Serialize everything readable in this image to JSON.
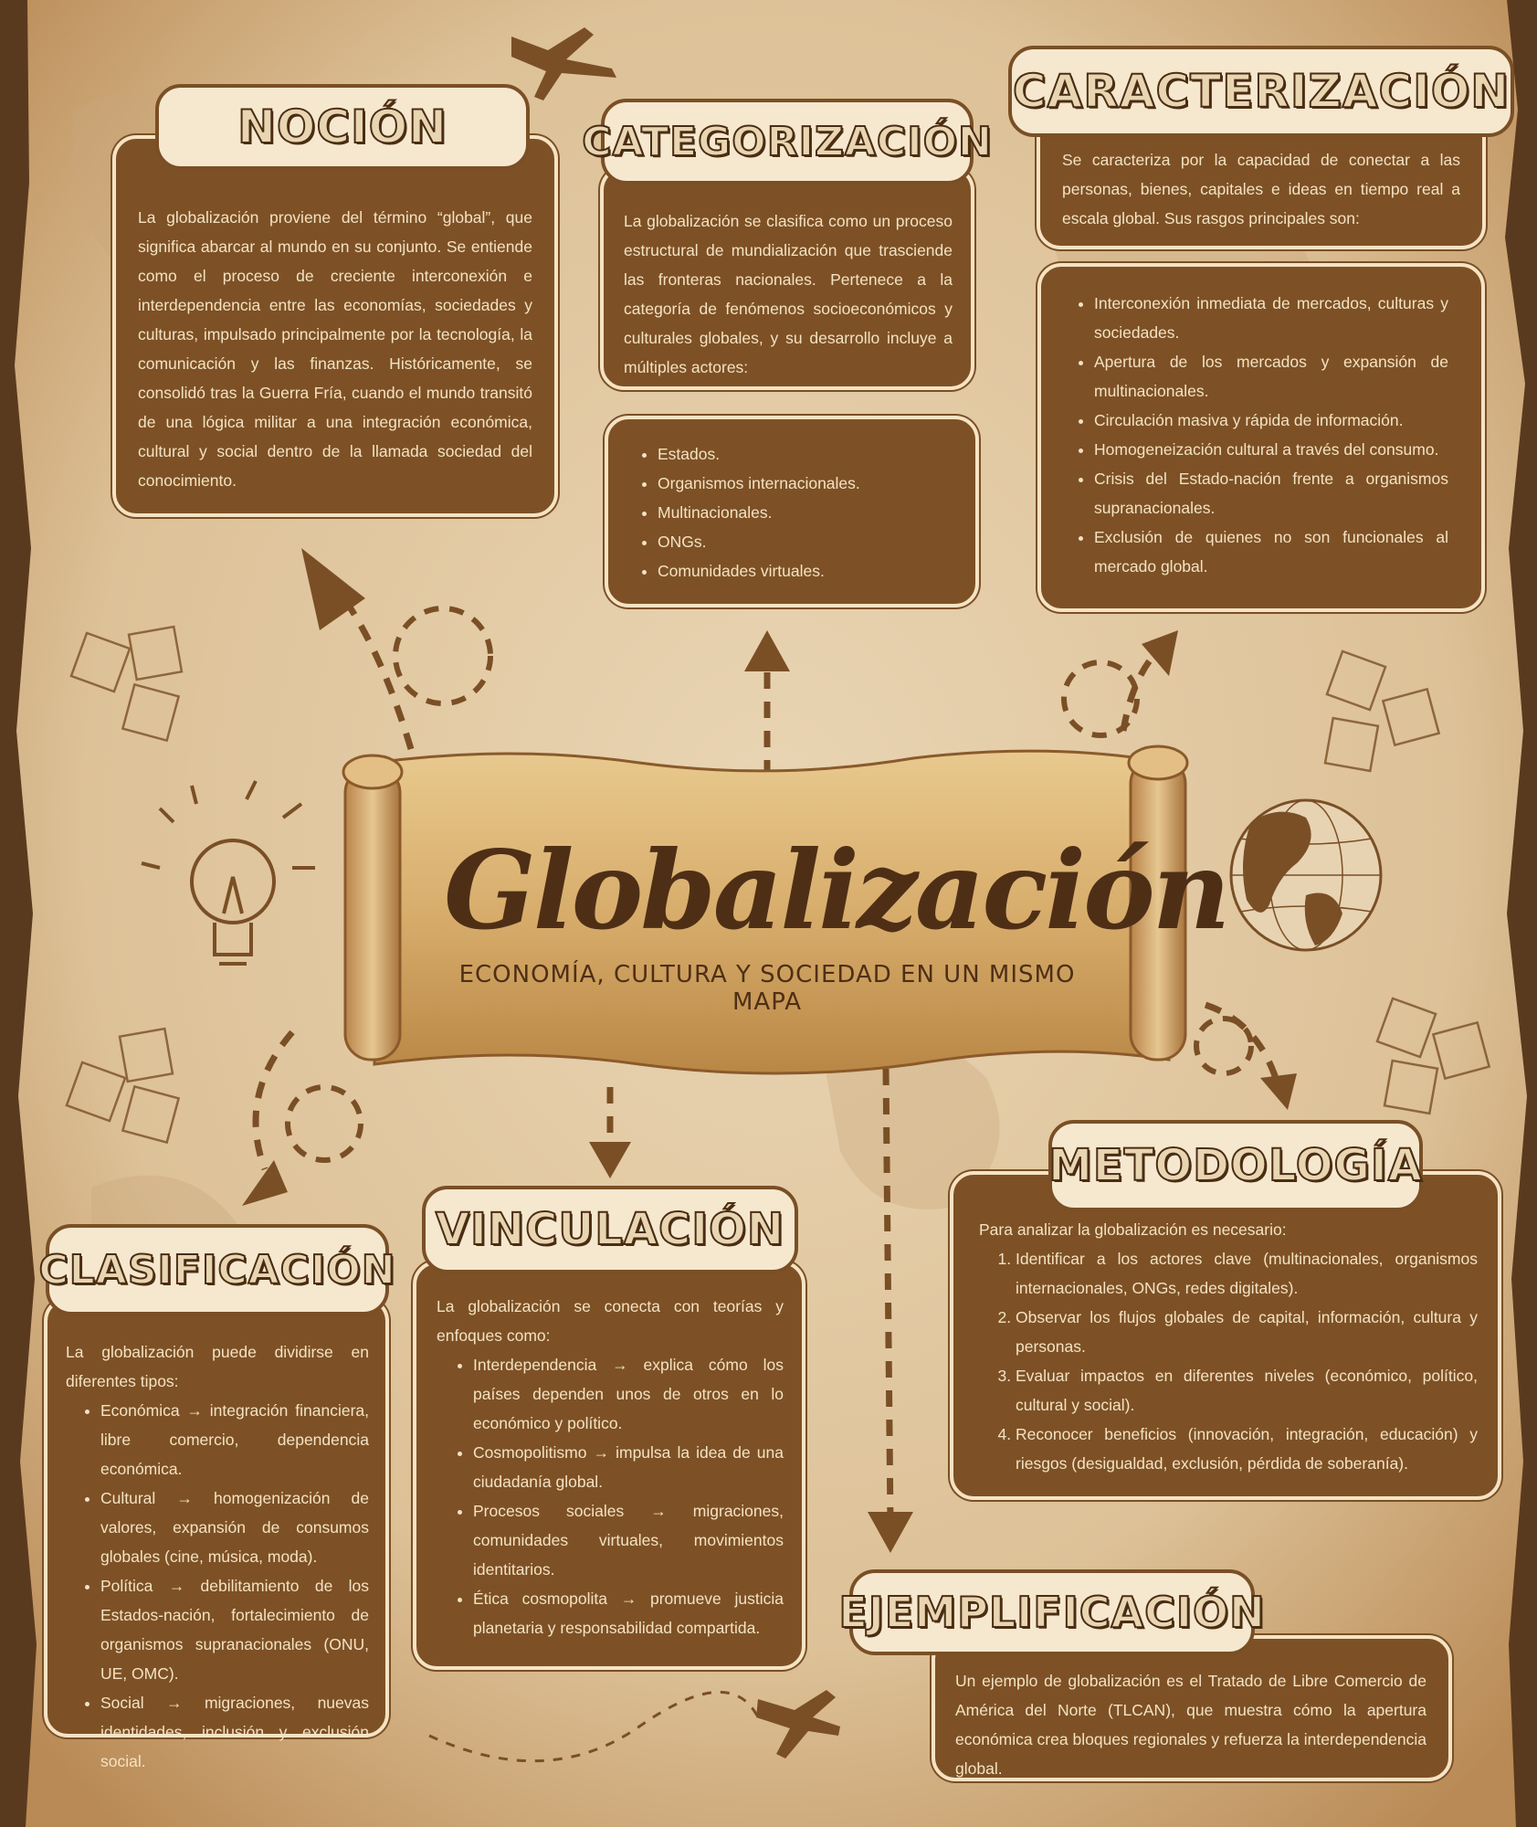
{
  "colors": {
    "card_bg": "#7d5125",
    "card_text": "#f3e2c4",
    "tag_bg": "#f6e8cf",
    "title": "#4e2f16"
  },
  "center": {
    "title": "Globalización",
    "subtitle": "ECONOMÍA, CULTURA Y SOCIEDAD EN UN MISMO MAPA"
  },
  "nocion": {
    "title": "NOCIÓN",
    "text": "La globalización proviene del término “global”, que significa abarcar al mundo en su conjunto. Se entiende como el proceso de creciente interconexión e interdependencia entre las economías, sociedades y culturas, impulsado principalmente por la tecnología, la comunicación y las finanzas. Históricamente, se consolidó tras la Guerra Fría, cuando el mundo transitó de una lógica militar a una integración económica, cultural y social dentro de la llamada sociedad del conocimiento."
  },
  "categorizacion": {
    "title": "CATEGORIZACIÓN",
    "text": "La globalización se clasifica como un proceso estructural de mundialización que trasciende las fronteras nacionales. Pertenece a la categoría de fenómenos socioeconómicos y culturales globales, y su desarrollo incluye a múltiples actores:",
    "items": [
      "Estados.",
      "Organismos internacionales.",
      "Multinacionales.",
      "ONGs.",
      "Comunidades virtuales."
    ]
  },
  "caracterizacion": {
    "title": "CARACTERIZACIÓN",
    "text": "Se caracteriza por la capacidad de conectar a las personas, bienes, capitales e ideas en tiempo real a escala global. Sus rasgos principales son:",
    "items": [
      "Interconexión inmediata de mercados, culturas y sociedades.",
      "Apertura de los mercados y expansión de multinacionales.",
      "Circulación masiva y rápida de información.",
      "Homogeneización cultural a través del consumo.",
      "Crisis del Estado-nación frente a organismos supranacionales.",
      "Exclusión de quienes no son funcionales al mercado global."
    ]
  },
  "clasificacion": {
    "title": "CLASIFICACIÓN",
    "text": "La globalización puede dividirse en diferentes tipos:",
    "items": [
      "Económica → integración financiera, libre comercio, dependencia económica.",
      "Cultural → homogenización de valores, expansión de consumos globales (cine, música, moda).",
      "Política → debilitamiento de los Estados-nación, fortalecimiento de organismos supranacionales (ONU, UE, OMC).",
      "Social → migraciones, nuevas identidades, inclusión y exclusión social."
    ]
  },
  "vinculacion": {
    "title": "VINCULACIÓN",
    "text": "La globalización se conecta con teorías y enfoques como:",
    "items": [
      "Interdependencia → explica cómo los países dependen unos de otros en lo económico y político.",
      "Cosmopolitismo → impulsa la idea de una ciudadanía global.",
      "Procesos sociales → migraciones, comunidades virtuales, movimientos identitarios.",
      "Ética cosmopolita → promueve justicia planetaria y responsabilidad compartida."
    ]
  },
  "metodologia": {
    "title": "METODOLOGÍA",
    "text": "Para analizar la globalización es necesario:",
    "items": [
      "Identificar a los actores clave (multinacionales, organismos internacionales, ONGs, redes digitales).",
      "Observar los flujos globales de capital, información, cultura y personas.",
      "Evaluar impactos en diferentes niveles (económico, político, cultural y social).",
      "Reconocer beneficios (innovación, integración, educación) y riesgos (desigualdad, exclusión, pérdida de soberanía)."
    ]
  },
  "ejemplificacion": {
    "title": "EJEMPLIFICACIÓN",
    "text": "Un ejemplo de globalización es el Tratado de Libre Comercio de América del Norte (TLCAN), que muestra cómo la apertura económica crea bloques regionales y refuerza la interdependencia global."
  }
}
